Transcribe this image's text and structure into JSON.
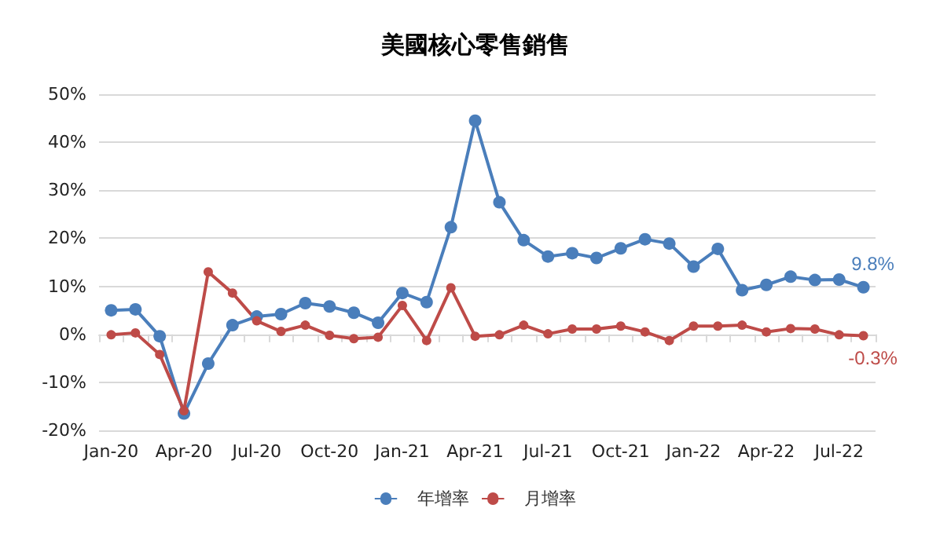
{
  "chart_data": {
    "type": "line",
    "title": "美國核心零售銷售",
    "categories": [
      "Jan-20",
      null,
      null,
      "Apr-20",
      null,
      null,
      "Jul-20",
      null,
      null,
      "Oct-20",
      null,
      null,
      "Jan-21",
      null,
      null,
      "Apr-21",
      null,
      null,
      "Jul-21",
      null,
      null,
      "Oct-21",
      null,
      null,
      "Jan-22",
      null,
      null,
      "Apr-22",
      null,
      null,
      "Jul-22",
      null
    ],
    "series": [
      {
        "name": "年增率",
        "color": "#4a7ebb",
        "values": [
          5.0,
          5.2,
          -0.4,
          -16.5,
          -6.1,
          1.9,
          3.7,
          4.2,
          6.5,
          5.8,
          4.5,
          2.4,
          8.6,
          6.7,
          22.3,
          44.5,
          27.5,
          19.6,
          16.2,
          16.9,
          15.9,
          17.9,
          19.8,
          18.9,
          14.1,
          17.8,
          9.2,
          10.3,
          12.0,
          11.3,
          11.4,
          9.8
        ],
        "value_labels": [
          null,
          null,
          null,
          null,
          null,
          null,
          null,
          null,
          null,
          null,
          null,
          null,
          null,
          null,
          null,
          null,
          null,
          null,
          null,
          null,
          null,
          null,
          null,
          null,
          null,
          null,
          null,
          null,
          null,
          null,
          null,
          "9.8%"
        ]
      },
      {
        "name": "月增率",
        "color": "#be4b48",
        "values": [
          -0.1,
          0.3,
          -4.2,
          -15.9,
          13.0,
          8.6,
          2.8,
          0.6,
          1.9,
          -0.2,
          -0.9,
          -0.6,
          6.0,
          -1.3,
          9.7,
          -0.4,
          -0.1,
          1.9,
          0.1,
          1.1,
          1.1,
          1.7,
          0.5,
          -1.3,
          1.7,
          1.7,
          1.9,
          0.5,
          1.2,
          1.1,
          -0.1,
          -0.3
        ],
        "value_labels": [
          null,
          null,
          null,
          null,
          null,
          null,
          null,
          null,
          null,
          null,
          null,
          null,
          null,
          null,
          null,
          null,
          null,
          null,
          null,
          null,
          null,
          null,
          null,
          null,
          null,
          null,
          null,
          null,
          null,
          null,
          null,
          "-0.3%"
        ]
      }
    ],
    "ylim": [
      -20,
      50
    ],
    "yticks": [
      {
        "value": -20,
        "label": "-20%"
      },
      {
        "value": -10,
        "label": "-10%"
      },
      {
        "value": 0,
        "label": "0%"
      },
      {
        "value": 10,
        "label": "10%"
      },
      {
        "value": 20,
        "label": "20%"
      },
      {
        "value": 30,
        "label": "30%"
      },
      {
        "value": 40,
        "label": "40%"
      },
      {
        "value": 50,
        "label": "50%"
      }
    ],
    "grid": "y",
    "legend": "bottom",
    "marker": "circle",
    "line_style": "solid"
  }
}
